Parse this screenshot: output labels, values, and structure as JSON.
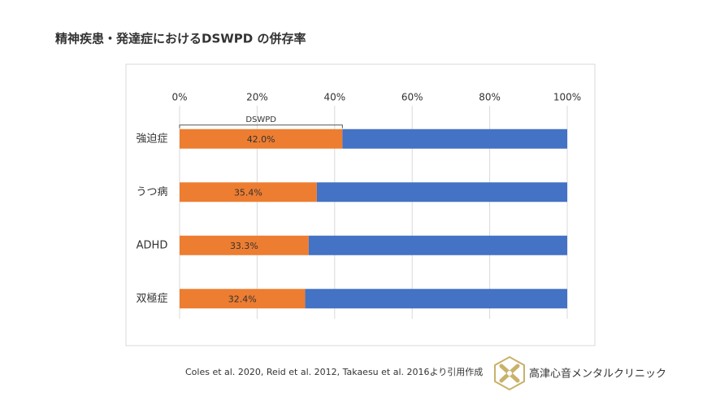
{
  "title": "精神疾患・発達症におけるDSWPD の併存率",
  "source": "Coles et al. 2020, Reid et al. 2012, Takaesu et al. 2016より引用作成",
  "clinic": "高津心音メンタルクリニック",
  "chart_data": {
    "type": "stacked-bar-horizontal",
    "categories": [
      "強迫症",
      "うつ病",
      "ADHD",
      "双極症"
    ],
    "series": [
      {
        "name": "DSWPD",
        "color": "#ed7d31",
        "values": [
          42.0,
          35.4,
          33.3,
          32.4
        ],
        "value_labels": [
          "42.0%",
          "35.4%",
          "33.3%",
          "32.4%"
        ]
      },
      {
        "color": "#4472c4",
        "values": [
          58.0,
          64.6,
          66.7,
          67.6
        ]
      }
    ],
    "xlim": [
      0,
      100
    ],
    "xticks": [
      {
        "value": 0,
        "label": "0%"
      },
      {
        "value": 20,
        "label": "20%"
      },
      {
        "value": 40,
        "label": "40%"
      },
      {
        "value": 60,
        "label": "60%"
      },
      {
        "value": 80,
        "label": "80%"
      },
      {
        "value": 100,
        "label": "100%"
      }
    ],
    "grid": true
  }
}
